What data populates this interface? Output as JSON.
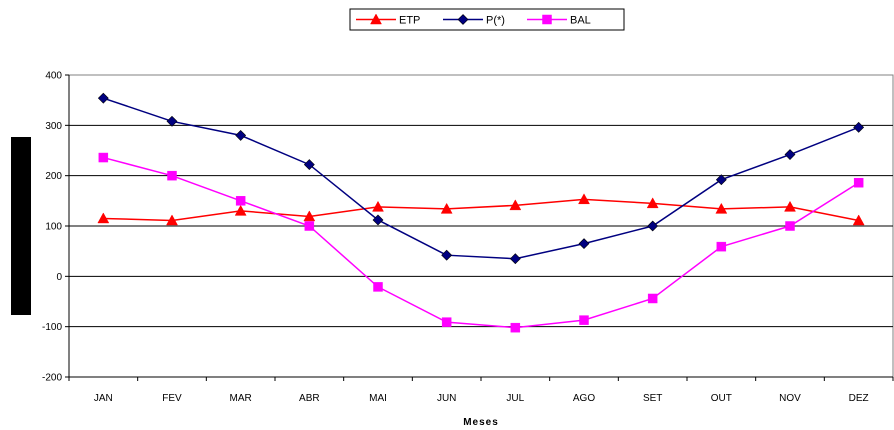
{
  "chart_data": {
    "type": "line",
    "categories": [
      "JAN",
      "FEV",
      "MAR",
      "ABR",
      "MAI",
      "JUN",
      "JUL",
      "AGO",
      "SET",
      "OUT",
      "NOV",
      "DEZ"
    ],
    "series": [
      {
        "name": "ETP",
        "color": "#ff0000",
        "marker": "triangle",
        "values": [
          115,
          111,
          130,
          119,
          138,
          134,
          141,
          153,
          145,
          134,
          138,
          111
        ]
      },
      {
        "name": "P(*)",
        "color": "#000080",
        "marker": "diamond",
        "values": [
          354,
          308,
          280,
          222,
          112,
          42,
          35,
          65,
          100,
          192,
          242,
          296
        ]
      },
      {
        "name": "BAL",
        "color": "#ff00ff",
        "marker": "square",
        "values": [
          236,
          200,
          150,
          100,
          -21,
          -91,
          -102,
          -87,
          -44,
          59,
          100,
          186
        ]
      }
    ],
    "yticks": [
      -200,
      -100,
      0,
      100,
      200,
      300,
      400
    ],
    "ylim": [
      -200,
      400
    ],
    "xlabel": "Meses",
    "ylabel": "",
    "grid": "horizontal",
    "legend": "top-center"
  }
}
